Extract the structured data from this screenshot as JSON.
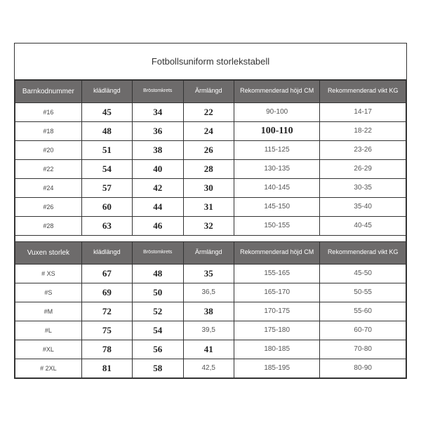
{
  "title": "Fotbollsuniform storlekstabell",
  "tables": [
    {
      "headers": [
        "Barnkodnummer",
        "klädlängd",
        "Bröstomkrets",
        "Ärmlängd",
        "Rekommenderad höjd CM",
        "Rekommenderad vikt KG"
      ],
      "rows": [
        {
          "code": "#16",
          "m": [
            "45",
            "34",
            "22"
          ],
          "h": "90-100",
          "w": "14-17",
          "bold_h": false
        },
        {
          "code": "#18",
          "m": [
            "48",
            "36",
            "24"
          ],
          "h": "100-110",
          "w": "18-22",
          "bold_h": true
        },
        {
          "code": "#20",
          "m": [
            "51",
            "38",
            "26"
          ],
          "h": "115-125",
          "w": "23-26",
          "bold_h": false
        },
        {
          "code": "#22",
          "m": [
            "54",
            "40",
            "28"
          ],
          "h": "130-135",
          "w": "26-29",
          "bold_h": false
        },
        {
          "code": "#24",
          "m": [
            "57",
            "42",
            "30"
          ],
          "h": "140-145",
          "w": "30-35",
          "bold_h": false
        },
        {
          "code": "#26",
          "m": [
            "60",
            "44",
            "31"
          ],
          "h": "145-150",
          "w": "35-40",
          "bold_h": false
        },
        {
          "code": "#28",
          "m": [
            "63",
            "46",
            "32"
          ],
          "h": "150-155",
          "w": "40-45",
          "bold_h": false
        }
      ]
    },
    {
      "headers": [
        "Vuxen storlek",
        "klädlängd",
        "Bröstomkrets",
        "Ärmlängd",
        "Rekommenderad höjd CM",
        "Rekommenderad vikt KG"
      ],
      "rows": [
        {
          "code": "# XS",
          "m": [
            "67",
            "48",
            "35"
          ],
          "h": "155-165",
          "w": "45-50",
          "bold_h": false
        },
        {
          "code": "#S",
          "m": [
            "69",
            "50",
            "36,5"
          ],
          "h": "165-170",
          "w": "50-55",
          "bold_h": false
        },
        {
          "code": "#M",
          "m": [
            "72",
            "52",
            "38"
          ],
          "h": "170-175",
          "w": "55-60",
          "bold_h": false
        },
        {
          "code": "#L",
          "m": [
            "75",
            "54",
            "39,5"
          ],
          "h": "175-180",
          "w": "60-70",
          "bold_h": false
        },
        {
          "code": "#XL",
          "m": [
            "78",
            "56",
            "41"
          ],
          "h": "180-185",
          "w": "70-80",
          "bold_h": false
        },
        {
          "code": "# 2XL",
          "m": [
            "81",
            "58",
            "42,5"
          ],
          "h": "185-195",
          "w": "80-90",
          "bold_h": false
        }
      ]
    }
  ],
  "colors": {
    "header_bg": "#6d6b6b",
    "header_fg": "#ffffff",
    "border": "#333333",
    "bg": "#ffffff"
  }
}
